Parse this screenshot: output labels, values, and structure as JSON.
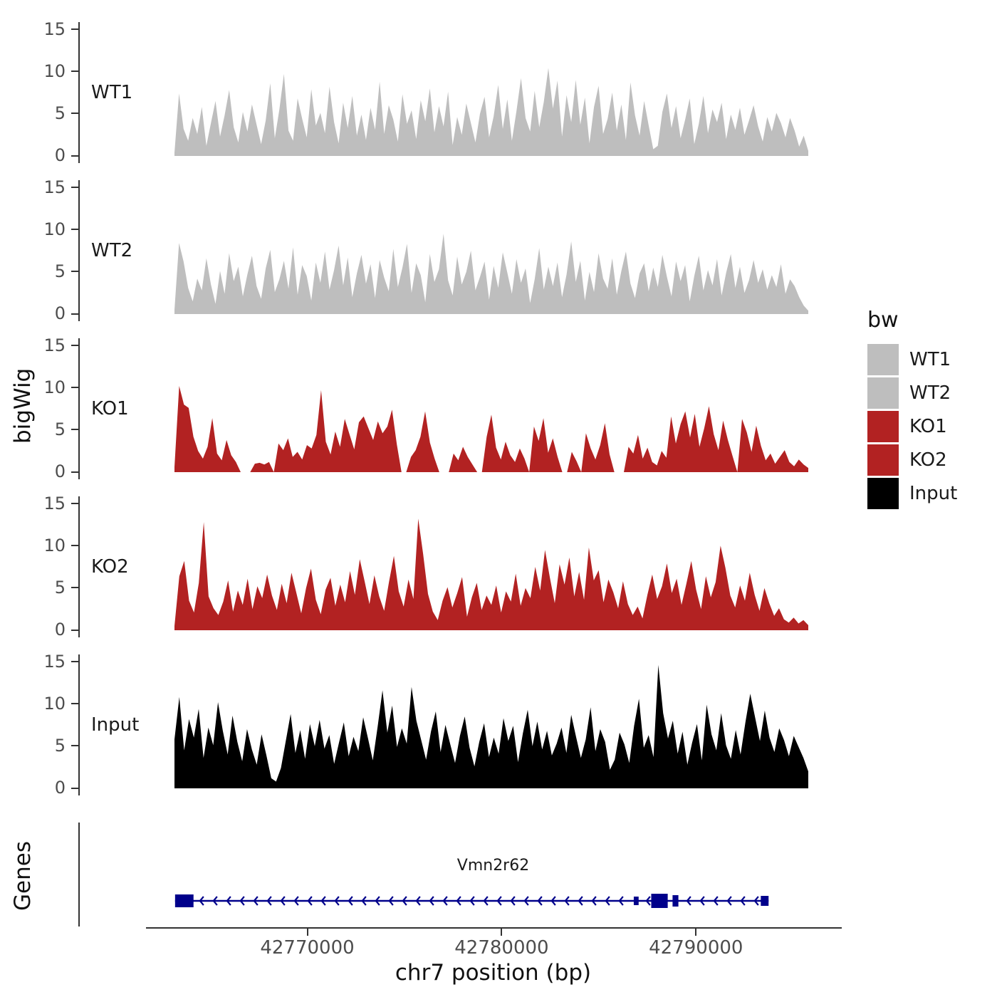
{
  "ylabel": "bigWig",
  "genes_panel": {
    "label": "Genes",
    "gene_name": "Vmn2r62"
  },
  "xaxis": {
    "label": "chr7 position (bp)",
    "domain": [
      42761700,
      42797500
    ],
    "ticks": [
      {
        "bp": 42770000,
        "label": "42770000"
      },
      {
        "bp": 42780000,
        "label": "42780000"
      },
      {
        "bp": 42790000,
        "label": "42790000"
      }
    ]
  },
  "yaxis": {
    "tick_labels": [
      "15",
      "10",
      "5",
      "0"
    ],
    "tick_values": [
      15,
      10,
      5,
      0
    ]
  },
  "legend": {
    "title": "bw",
    "entries": [
      {
        "label": "WT1",
        "color": "#BEBEBE"
      },
      {
        "label": "WT2",
        "color": "#BEBEBE"
      },
      {
        "label": "KO1",
        "color": "#B22222"
      },
      {
        "label": "KO2",
        "color": "#B22222"
      },
      {
        "label": "Input",
        "color": "#000000"
      }
    ]
  },
  "chart_data": {
    "type": "area",
    "ylim": [
      0,
      15
    ],
    "x_data_range_bp": [
      42763200,
      42795900
    ],
    "xlabel": "chr7 position (bp)",
    "ylabel": "bigWig",
    "grid": false,
    "legend_position": "right",
    "tracks": [
      {
        "name": "WT1",
        "color": "#BEBEBE",
        "values": [
          0.4,
          7.4,
          3.2,
          1.8,
          4.5,
          2.6,
          5.8,
          1.2,
          3.9,
          6.5,
          2.3,
          4.8,
          7.8,
          3.4,
          1.6,
          5.2,
          2.9,
          6.1,
          3.7,
          1.4,
          4.2,
          8.6,
          2.1,
          5.5,
          9.7,
          3.0,
          1.8,
          6.8,
          4.4,
          2.2,
          7.9,
          3.6,
          5.1,
          2.7,
          8.2,
          4.0,
          1.5,
          6.3,
          3.3,
          7.1,
          2.4,
          4.9,
          1.9,
          5.7,
          3.1,
          8.8,
          2.6,
          6.0,
          4.3,
          1.7,
          7.3,
          3.8,
          5.4,
          2.0,
          6.6,
          4.1,
          8.0,
          2.8,
          5.9,
          3.5,
          7.6,
          1.3,
          4.6,
          2.5,
          6.2,
          3.9,
          1.6,
          5.0,
          7.0,
          2.2,
          4.7,
          8.4,
          3.2,
          6.7,
          1.8,
          5.3,
          9.2,
          4.5,
          2.9,
          7.7,
          3.4,
          6.4,
          10.4,
          5.6,
          8.9,
          2.3,
          7.2,
          4.0,
          9.0,
          3.7,
          6.9,
          1.5,
          5.8,
          8.3,
          2.6,
          4.4,
          7.5,
          3.0,
          6.1,
          1.9,
          8.7,
          4.8,
          2.4,
          6.5,
          3.6,
          0.8,
          1.2,
          5.2,
          7.4,
          3.3,
          5.9,
          2.1,
          4.3,
          6.8,
          1.4,
          3.8,
          7.1,
          2.7,
          5.5,
          4.0,
          6.3,
          2.0,
          4.9,
          3.1,
          5.7,
          2.5,
          4.2,
          6.0,
          3.5,
          1.7,
          4.6,
          2.9,
          5.1,
          3.9,
          2.2,
          4.5,
          3.0,
          1.1,
          2.4,
          0.6
        ]
      },
      {
        "name": "WT2",
        "color": "#BEBEBE",
        "values": [
          0.5,
          8.4,
          6.2,
          3.1,
          1.5,
          4.2,
          2.8,
          6.6,
          3.5,
          1.2,
          5.1,
          2.4,
          7.2,
          3.9,
          5.6,
          2.1,
          4.7,
          6.9,
          3.3,
          1.8,
          5.4,
          7.6,
          2.6,
          4.1,
          6.3,
          3.0,
          7.9,
          2.3,
          5.8,
          4.5,
          1.6,
          6.1,
          3.7,
          7.4,
          2.9,
          5.2,
          8.1,
          3.4,
          6.7,
          2.0,
          4.8,
          7.0,
          3.6,
          5.9,
          1.9,
          6.4,
          4.3,
          2.7,
          7.7,
          3.2,
          5.5,
          8.3,
          2.5,
          6.0,
          4.6,
          1.4,
          7.1,
          3.8,
          5.3,
          9.5,
          4.0,
          2.2,
          6.8,
          3.5,
          5.0,
          7.5,
          2.8,
          4.4,
          6.2,
          1.7,
          5.7,
          3.1,
          7.3,
          4.9,
          2.4,
          6.5,
          3.7,
          5.4,
          1.3,
          4.1,
          7.8,
          2.9,
          5.6,
          3.3,
          6.1,
          2.0,
          4.7,
          8.6,
          3.8,
          6.3,
          1.6,
          5.0,
          2.6,
          7.2,
          4.2,
          3.0,
          6.6,
          2.3,
          5.1,
          7.4,
          3.6,
          1.9,
          4.8,
          6.0,
          2.7,
          5.5,
          3.2,
          7.0,
          4.4,
          2.1,
          6.2,
          3.9,
          5.8,
          1.5,
          4.5,
          6.9,
          2.8,
          5.2,
          3.4,
          6.5,
          2.2,
          4.9,
          7.1,
          3.1,
          5.6,
          2.5,
          4.0,
          6.4,
          3.7,
          5.3,
          2.9,
          4.6,
          3.2,
          5.9,
          2.4,
          4.1,
          3.3,
          2.0,
          1.0,
          0.4
        ]
      },
      {
        "name": "KO1",
        "color": "#B22222",
        "values": [
          0.6,
          10.2,
          8.0,
          7.6,
          4.2,
          2.5,
          1.6,
          3.0,
          6.4,
          2.2,
          1.4,
          3.8,
          2.0,
          1.2,
          0,
          0,
          0,
          1.0,
          1.1,
          0.9,
          1.2,
          0,
          3.4,
          2.6,
          4.0,
          1.8,
          2.4,
          1.5,
          3.2,
          2.8,
          4.4,
          9.7,
          3.6,
          2.1,
          4.8,
          3.0,
          6.3,
          4.5,
          2.7,
          5.9,
          6.6,
          5.2,
          3.8,
          6.0,
          4.6,
          5.4,
          7.4,
          3.3,
          0,
          0,
          1.8,
          2.6,
          4.2,
          7.2,
          3.5,
          1.6,
          0,
          0,
          0,
          2.2,
          1.4,
          3.0,
          1.8,
          0.9,
          0,
          0,
          4.2,
          6.8,
          2.9,
          1.5,
          3.6,
          2.0,
          1.2,
          2.8,
          1.6,
          0,
          5.4,
          3.7,
          6.4,
          2.3,
          4.0,
          1.8,
          0,
          0,
          2.4,
          1.3,
          0,
          4.6,
          2.8,
          1.5,
          3.2,
          5.8,
          2.1,
          0,
          0,
          0,
          3.0,
          2.2,
          4.4,
          1.6,
          2.9,
          1.2,
          0.8,
          2.5,
          1.7,
          6.6,
          3.4,
          5.7,
          7.2,
          4.1,
          6.9,
          3.0,
          5.2,
          7.8,
          4.5,
          2.6,
          6.1,
          3.8,
          1.9,
          0,
          6.3,
          4.7,
          2.4,
          5.5,
          3.1,
          1.4,
          2.2,
          1.0,
          1.8,
          2.6,
          1.2,
          0.7,
          1.5,
          0.9,
          0.5
        ]
      },
      {
        "name": "KO2",
        "color": "#B22222",
        "values": [
          0.5,
          6.4,
          8.2,
          3.5,
          2.1,
          5.6,
          12.8,
          4.0,
          2.6,
          1.8,
          3.4,
          5.9,
          2.2,
          4.7,
          3.0,
          6.1,
          2.5,
          5.2,
          3.8,
          6.6,
          4.1,
          2.4,
          5.5,
          3.2,
          6.8,
          4.4,
          2.0,
          5.0,
          7.3,
          3.6,
          1.9,
          4.8,
          6.2,
          2.9,
          5.4,
          3.3,
          7.0,
          4.2,
          8.4,
          5.8,
          3.1,
          6.5,
          4.0,
          2.3,
          5.7,
          8.8,
          4.6,
          2.8,
          6.0,
          3.7,
          13.2,
          9.0,
          4.3,
          2.2,
          1.2,
          3.5,
          5.1,
          2.7,
          4.4,
          6.3,
          1.6,
          3.9,
          5.6,
          2.4,
          4.1,
          3.0,
          5.3,
          2.1,
          4.6,
          3.4,
          6.7,
          2.9,
          5.0,
          3.8,
          7.5,
          4.7,
          9.5,
          6.2,
          3.2,
          7.8,
          5.4,
          8.6,
          4.0,
          6.9,
          3.6,
          9.8,
          5.9,
          7.1,
          3.3,
          6.0,
          4.5,
          2.6,
          5.8,
          3.1,
          1.8,
          2.8,
          1.4,
          4.2,
          6.6,
          3.7,
          5.2,
          7.9,
          4.4,
          6.1,
          3.0,
          5.5,
          8.2,
          4.8,
          2.5,
          6.4,
          3.9,
          5.7,
          10.0,
          7.4,
          4.1,
          2.7,
          5.3,
          3.5,
          6.8,
          4.2,
          2.3,
          5.0,
          3.2,
          1.7,
          2.6,
          1.3,
          0.9,
          1.5,
          0.8,
          1.2,
          0.6
        ]
      },
      {
        "name": "Input",
        "color": "#000000",
        "values": [
          5.8,
          10.8,
          4.5,
          8.2,
          6.0,
          9.4,
          3.6,
          7.2,
          5.1,
          10.2,
          6.8,
          4.0,
          8.6,
          5.5,
          3.2,
          7.0,
          4.6,
          2.8,
          6.4,
          3.9,
          1.2,
          0.8,
          2.4,
          5.6,
          8.8,
          4.2,
          6.9,
          3.5,
          7.6,
          5.0,
          8.1,
          4.7,
          6.3,
          2.9,
          5.4,
          7.8,
          3.8,
          6.1,
          4.4,
          8.4,
          5.9,
          3.3,
          7.3,
          11.6,
          6.6,
          9.8,
          4.9,
          7.1,
          5.3,
          12.0,
          8.0,
          5.7,
          3.4,
          6.7,
          9.1,
          4.3,
          7.5,
          5.2,
          3.0,
          6.2,
          8.5,
          4.8,
          2.6,
          5.5,
          7.7,
          3.7,
          6.0,
          4.1,
          8.3,
          5.6,
          7.4,
          3.1,
          6.5,
          9.3,
          5.0,
          7.9,
          4.6,
          6.8,
          3.9,
          5.3,
          7.2,
          4.2,
          8.7,
          6.1,
          3.6,
          5.8,
          9.6,
          4.4,
          7.0,
          5.5,
          2.2,
          3.4,
          6.6,
          5.2,
          3.0,
          7.4,
          10.6,
          4.8,
          6.3,
          3.7,
          14.6,
          8.9,
          5.9,
          8.0,
          4.1,
          6.7,
          2.8,
          5.4,
          7.6,
          3.3,
          9.9,
          6.4,
          4.5,
          8.9,
          5.1,
          3.5,
          6.9,
          4.0,
          7.8,
          11.2,
          8.4,
          5.6,
          9.2,
          6.0,
          4.3,
          7.1,
          5.7,
          3.8,
          6.2,
          4.9,
          3.6,
          2.0
        ]
      }
    ],
    "gene": {
      "name": "Vmn2r62",
      "strand": "-",
      "color": "#00008B",
      "start": 42763200,
      "end": 42793800,
      "exons": [
        [
          42763200,
          42764150,
          18
        ],
        [
          42786850,
          42787100,
          12
        ],
        [
          42787750,
          42788600,
          20
        ],
        [
          42788850,
          42789150,
          16
        ],
        [
          42793400,
          42793800,
          14
        ]
      ]
    }
  }
}
